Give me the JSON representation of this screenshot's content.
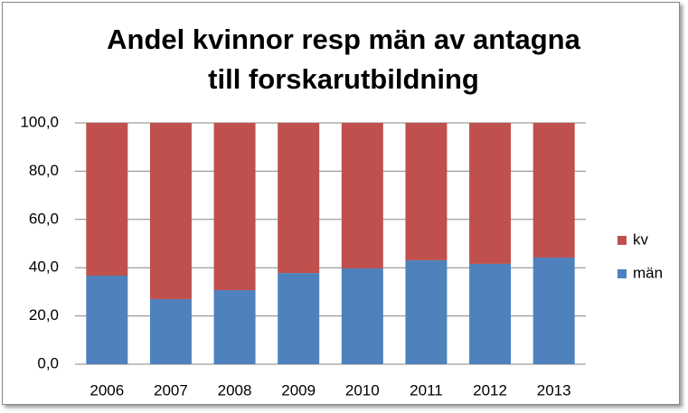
{
  "chart_data": {
    "type": "stacked-bar",
    "title": "Andel kvinnor resp män av antagna till forskarutbildning",
    "categories": [
      "2006",
      "2007",
      "2008",
      "2009",
      "2010",
      "2011",
      "2012",
      "2013"
    ],
    "series": [
      {
        "name": "män",
        "color": "#4f81bd",
        "values": [
          36.7,
          27.0,
          30.7,
          37.8,
          39.7,
          43.1,
          41.6,
          44.2
        ]
      },
      {
        "name": "kv",
        "color": "#c0504d",
        "values": [
          63.3,
          73.0,
          69.3,
          62.2,
          60.3,
          56.9,
          58.4,
          55.8
        ]
      }
    ],
    "ylim": [
      0,
      100
    ],
    "yticks": [
      {
        "value": 0,
        "label": "0,0"
      },
      {
        "value": 20,
        "label": "20,0"
      },
      {
        "value": 40,
        "label": "40,0"
      },
      {
        "value": 60,
        "label": "60,0"
      },
      {
        "value": 80,
        "label": "80,0"
      },
      {
        "value": 100,
        "label": "100,0"
      }
    ],
    "grid": true,
    "legend": "right"
  }
}
